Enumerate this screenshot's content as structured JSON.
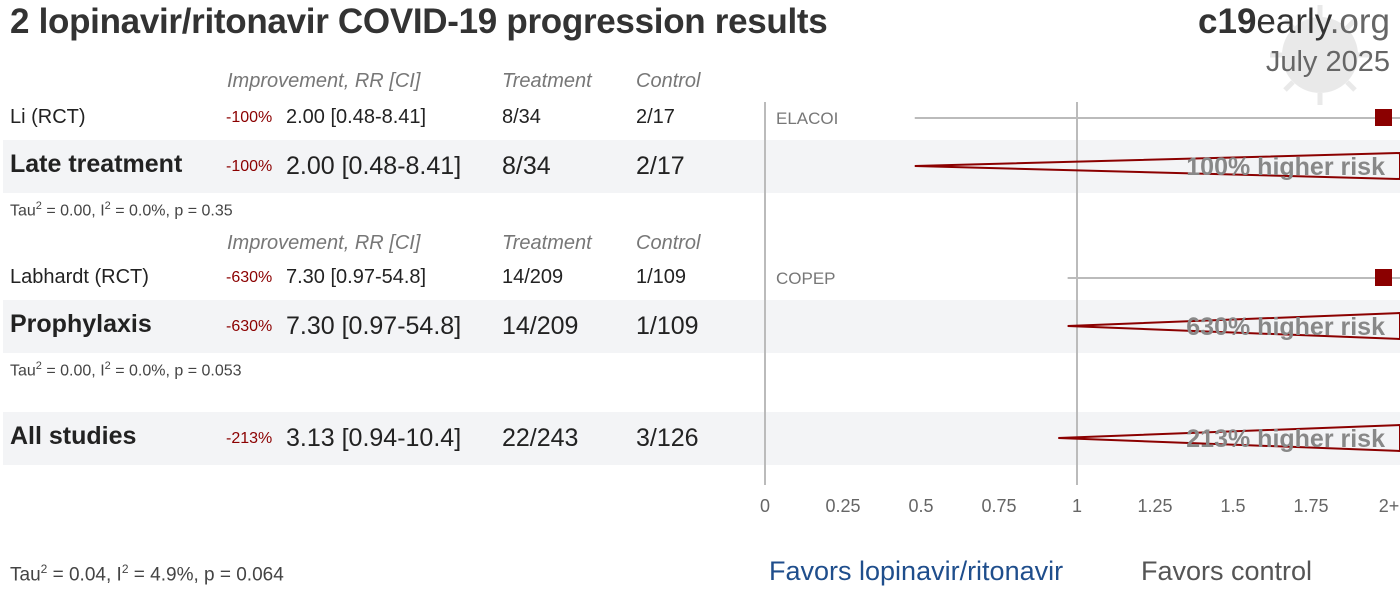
{
  "header": {
    "title": "2 lopinavir/ritonavir COVID-19 progression results",
    "brand_bold": "c19",
    "brand_rest": "early",
    "brand_tld": ".org",
    "date": "July 2025"
  },
  "columns": {
    "improvement": "Improvement, RR [CI]",
    "treatment": "Treatment",
    "control": "Control"
  },
  "sections": [
    {
      "studies": [
        {
          "name": "Li (RCT)",
          "improvement": "-100%",
          "rr_ci": "2.00 [0.48-8.41]",
          "treatment": "8/34",
          "control": "2/17",
          "trial": "ELACOI"
        }
      ],
      "summary": {
        "name": "Late treatment",
        "improvement": "-100%",
        "rr_ci": "2.00 [0.48-8.41]",
        "treatment": "8/34",
        "control": "2/17",
        "risk_label": "100% higher risk"
      },
      "stats": {
        "tau": "Tau",
        "tau_sup": "2",
        "tau_val": " = 0.00, I",
        "i_sup": "2",
        "rest": " = 0.0%, p = 0.35"
      }
    },
    {
      "studies": [
        {
          "name": "Labhardt (RCT)",
          "improvement": "-630%",
          "rr_ci": "7.30 [0.97-54.8]",
          "treatment": "14/209",
          "control": "1/109",
          "trial": "COPEP"
        }
      ],
      "summary": {
        "name": "Prophylaxis",
        "improvement": "-630%",
        "rr_ci": "7.30 [0.97-54.8]",
        "treatment": "14/209",
        "control": "1/109",
        "risk_label": "630% higher risk"
      },
      "stats": {
        "tau": "Tau",
        "tau_sup": "2",
        "tau_val": " = 0.00, I",
        "i_sup": "2",
        "rest": " = 0.0%, p = 0.053"
      }
    }
  ],
  "overall": {
    "name": "All studies",
    "improvement": "-213%",
    "rr_ci": "3.13 [0.94-10.4]",
    "treatment": "22/243",
    "control": "3/126",
    "risk_label": "213% higher risk",
    "stats": {
      "tau": "Tau",
      "tau_sup": "2",
      "tau_val": " = 0.04, I",
      "i_sup": "2",
      "rest": " = 4.9%, p = 0.064"
    }
  },
  "favors": {
    "left": "Favors lopinavir/ritonavir",
    "right": "Favors control"
  },
  "colors": {
    "marker": "#8b0000",
    "axis": "#bbbbbb",
    "band": "#f3f4f6",
    "favor_left": "#1f4e8c"
  },
  "chart_data": {
    "type": "forest",
    "xlim": [
      0,
      2
    ],
    "x_ticks": [
      "0",
      "0.25",
      "0.5",
      "0.75",
      "1",
      "1.25",
      "1.5",
      "1.75",
      "2+"
    ],
    "tick_values": [
      0,
      0.25,
      0.5,
      0.75,
      1,
      1.25,
      1.5,
      1.75,
      2
    ],
    "reference_line": 1,
    "rows": [
      {
        "kind": "study",
        "label": "ELACOI",
        "rr": 2.0,
        "lo": 0.48,
        "hi": 8.41
      },
      {
        "kind": "summary",
        "label": "100% higher risk",
        "rr": 2.0,
        "lo": 0.48,
        "hi": 8.41
      },
      {
        "kind": "study",
        "label": "COPEP",
        "rr": 7.3,
        "lo": 0.97,
        "hi": 54.8
      },
      {
        "kind": "summary",
        "label": "630% higher risk",
        "rr": 7.3,
        "lo": 0.97,
        "hi": 54.8
      },
      {
        "kind": "summary",
        "label": "213% higher risk",
        "rr": 3.13,
        "lo": 0.94,
        "hi": 10.4
      }
    ]
  }
}
